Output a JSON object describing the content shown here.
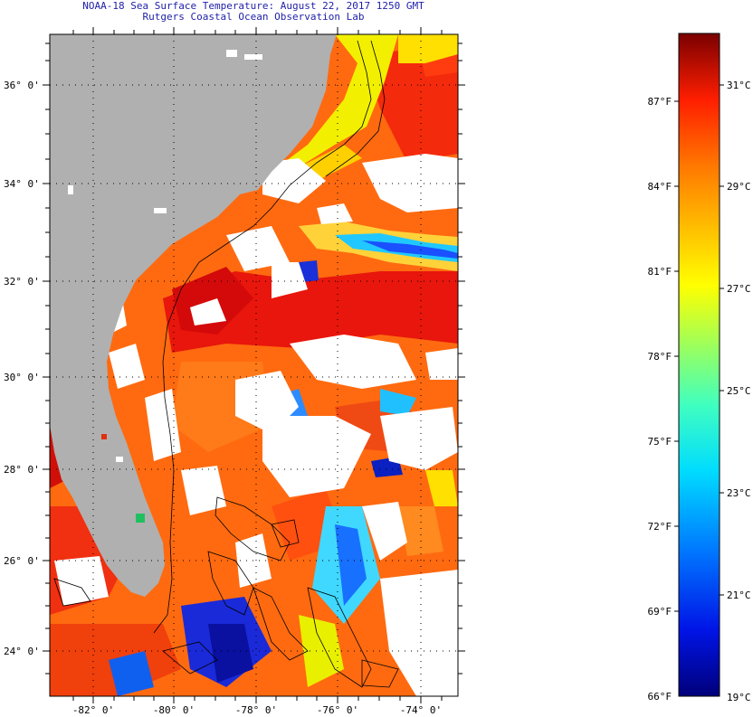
{
  "header": {
    "title": "NOAA-18 Sea Surface Temperature:  August 22, 2017 1250 GMT",
    "subtitle": "Rutgers Coastal Ocean Observation Lab"
  },
  "map": {
    "lat_labels": [
      "36° 0'",
      "34° 0'",
      "32° 0'",
      "30° 0'",
      "28° 0'",
      "26° 0'",
      "24° 0'"
    ],
    "lon_labels": [
      "-82° 0'",
      "-80° 0'",
      "-78° 0'",
      "-76° 0'",
      "-74° 0'"
    ],
    "land_color": "#b0b0b0",
    "cloud_color": "#ffffff"
  },
  "colorbar": {
    "f_labels": [
      "87°F",
      "84°F",
      "81°F",
      "78°F",
      "75°F",
      "72°F",
      "69°F",
      "66°F"
    ],
    "c_labels": [
      "31°C",
      "29°C",
      "27°C",
      "25°C",
      "23°C",
      "21°C",
      "19°C"
    ],
    "min_c": 19,
    "max_c": 32.5
  }
}
